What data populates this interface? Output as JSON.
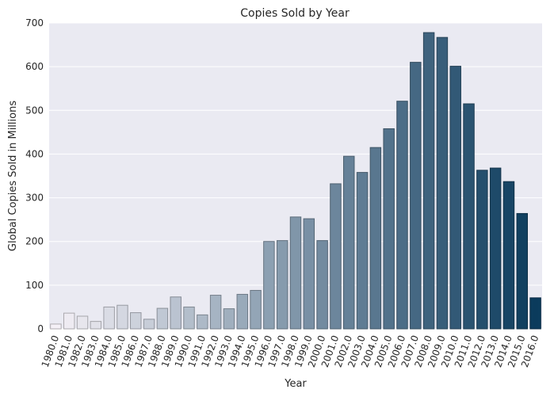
{
  "chart_data": {
    "type": "bar",
    "title": "Copies Sold by Year",
    "xlabel": "Year",
    "ylabel": "Global Copies Sold in Millions",
    "ylim": [
      0,
      700
    ],
    "yticks": [
      "0",
      "100",
      "200",
      "300",
      "400",
      "500",
      "600",
      "700"
    ],
    "grid": true,
    "categories": [
      "1980.0",
      "1981.0",
      "1982.0",
      "1983.0",
      "1984.0",
      "1985.0",
      "1986.0",
      "1987.0",
      "1988.0",
      "1989.0",
      "1990.0",
      "1991.0",
      "1992.0",
      "1993.0",
      "1994.0",
      "1995.0",
      "1996.0",
      "1997.0",
      "1998.0",
      "1999.0",
      "2000.0",
      "2001.0",
      "2002.0",
      "2003.0",
      "2004.0",
      "2005.0",
      "2006.0",
      "2007.0",
      "2008.0",
      "2009.0",
      "2010.0",
      "2011.0",
      "2012.0",
      "2013.0",
      "2014.0",
      "2015.0",
      "2016.0"
    ],
    "values": [
      11,
      36,
      29,
      17,
      50,
      54,
      37,
      22,
      47,
      73,
      50,
      32,
      77,
      46,
      79,
      88,
      200,
      202,
      256,
      252,
      202,
      332,
      395,
      358,
      415,
      458,
      521,
      610,
      678,
      667,
      601,
      515,
      363,
      368,
      337,
      264,
      71
    ],
    "palette_start": "#f4f0f6",
    "palette_end": "#0b3b5c"
  }
}
